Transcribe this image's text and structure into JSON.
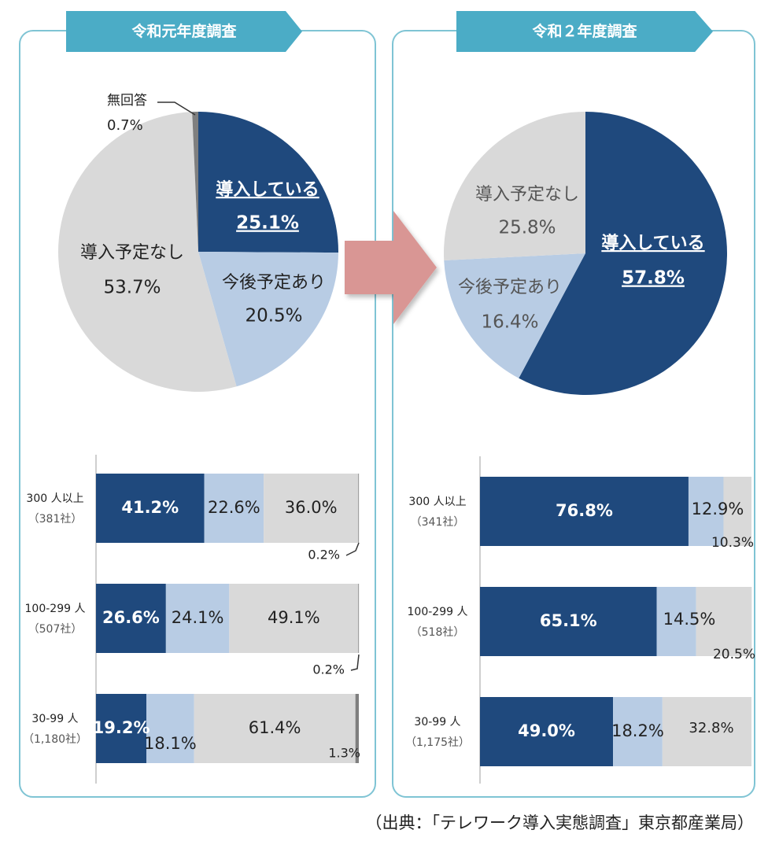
{
  "source_note": "（出典：「テレワーク導入実態調査」東京都産業局）",
  "colors": {
    "introduced": "#1f497d",
    "planned": "#b8cce4",
    "none": "#d9d9d9",
    "no_answer": "#7f7f7f",
    "arrow": "#d99694",
    "banner": "#4bacc6",
    "panel_border": "#7fc4d4"
  },
  "chart_data": [
    {
      "type": "pie",
      "title": "令和元年度調査",
      "slices": [
        {
          "label": "導入している",
          "value": 25.1,
          "display": "25.1%",
          "color": "#1f497d"
        },
        {
          "label": "今後予定あり",
          "value": 20.5,
          "display": "20.5%",
          "color": "#b8cce4"
        },
        {
          "label": "導入予定なし",
          "value": 53.7,
          "display": "53.7%",
          "color": "#d9d9d9"
        },
        {
          "label": "無回答",
          "value": 0.7,
          "display": "0.7%",
          "color": "#7f7f7f"
        }
      ]
    },
    {
      "type": "pie",
      "title": "令和２年度調査",
      "slices": [
        {
          "label": "導入している",
          "value": 57.8,
          "display": "57.8%",
          "color": "#1f497d"
        },
        {
          "label": "今後予定あり",
          "value": 16.4,
          "display": "16.4%",
          "color": "#b8cce4"
        },
        {
          "label": "導入予定なし",
          "value": 25.8,
          "display": "25.8%",
          "color": "#d9d9d9"
        }
      ]
    },
    {
      "type": "bar",
      "orientation": "horizontal-stacked",
      "survey": "令和元年度調査",
      "categories": [
        {
          "label": "300 人以上",
          "sub": "（381社）"
        },
        {
          "label": "100-299 人",
          "sub": "（507社）"
        },
        {
          "label": "30-99 人",
          "sub": "（1,180社）"
        }
      ],
      "series": [
        {
          "key": "introduced",
          "values": [
            41.2,
            26.6,
            19.2
          ],
          "labels": [
            "41.2%",
            "26.6%",
            "19.2%"
          ]
        },
        {
          "key": "planned",
          "values": [
            22.6,
            24.1,
            18.1
          ],
          "labels": [
            "22.6%",
            "24.1%",
            "18.1%"
          ]
        },
        {
          "key": "none",
          "values": [
            36.0,
            49.1,
            61.4
          ],
          "labels": [
            "36.0%",
            "49.1%",
            "61.4%"
          ]
        },
        {
          "key": "no_answer",
          "values": [
            0.2,
            0.2,
            1.3
          ],
          "labels": [
            "0.2%",
            "0.2%",
            "1.3%"
          ]
        }
      ]
    },
    {
      "type": "bar",
      "orientation": "horizontal-stacked",
      "survey": "令和２年度調査",
      "categories": [
        {
          "label": "300 人以上",
          "sub": "（341社）"
        },
        {
          "label": "100-299 人",
          "sub": "（518社）"
        },
        {
          "label": "30-99 人",
          "sub": "（1,175社）"
        }
      ],
      "series": [
        {
          "key": "introduced",
          "values": [
            76.8,
            65.1,
            49.0
          ],
          "labels": [
            "76.8%",
            "65.1%",
            "49.0%"
          ]
        },
        {
          "key": "planned",
          "values": [
            12.9,
            14.5,
            18.2
          ],
          "labels": [
            "12.9%",
            "14.5%",
            "18.2%"
          ]
        },
        {
          "key": "none",
          "values": [
            10.3,
            20.5,
            32.8
          ],
          "labels": [
            "10.3%",
            "20.5%",
            "32.8%"
          ]
        }
      ]
    }
  ]
}
